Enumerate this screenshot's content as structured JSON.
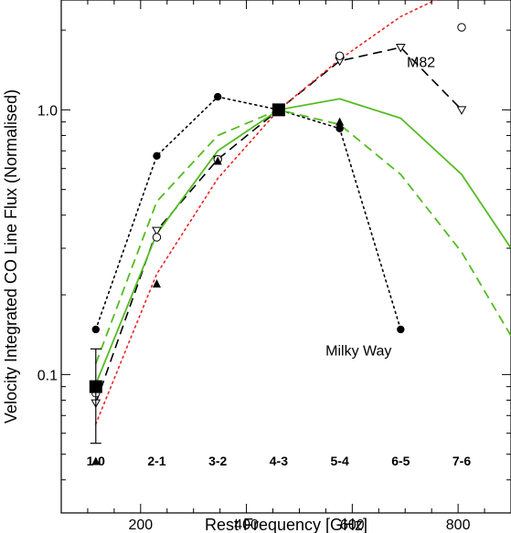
{
  "chart_data": {
    "type": "line",
    "xlabel": "Rest Frequency [GHz]",
    "ylabel": "Velocity Integrated CO Line Flux (Normalised)",
    "xlim": [
      50,
      900
    ],
    "ylim": [
      0.03,
      2.6
    ],
    "yscale": "log",
    "grid": false,
    "x_ticks": [
      200,
      400,
      600,
      800
    ],
    "y_ticks": [
      0.1,
      1.0
    ],
    "y_tick_labels": [
      "0.1",
      "1.0"
    ],
    "transitions": [
      {
        "label": "1-0",
        "freq": 115.3
      },
      {
        "label": "2-1",
        "freq": 230.5
      },
      {
        "label": "3-2",
        "freq": 345.8
      },
      {
        "label": "4-3",
        "freq": 461.0
      },
      {
        "label": "5-4",
        "freq": 576.3
      },
      {
        "label": "6-5",
        "freq": 691.5
      },
      {
        "label": "7-6",
        "freq": 806.7
      }
    ],
    "annotations": [
      {
        "text": "M82",
        "x": 730,
        "y": 1.45
      },
      {
        "text": "Milky Way",
        "x": 612,
        "y": 0.118
      }
    ],
    "series": [
      {
        "style": "black-dotted-filled-circle",
        "color": "#000000",
        "dash": "dotted",
        "x": [
          115.3,
          230.5,
          345.8,
          461.0,
          576.3,
          691.5
        ],
        "y": [
          0.148,
          0.67,
          1.12,
          1.0,
          0.85,
          0.148
        ]
      },
      {
        "style": "black-dashed-open-triangle",
        "color": "#000000",
        "dash": "dashed",
        "x": [
          115.3,
          230.5,
          345.8,
          461.0,
          576.3,
          691.5,
          806.7
        ],
        "y": [
          0.078,
          0.35,
          0.65,
          1.0,
          1.53,
          1.72,
          1.0
        ]
      },
      {
        "style": "open-circle",
        "color": "#000000",
        "dash": "none",
        "x": [
          115.3,
          230.5,
          345.8,
          461.0,
          576.3,
          806.7
        ],
        "y": [
          0.085,
          0.33,
          0.65,
          1.0,
          1.6,
          2.05
        ]
      },
      {
        "style": "filled-triangle",
        "color": "#000000",
        "dash": "none",
        "x": [
          115.3,
          230.5,
          345.8,
          461.0,
          576.3
        ],
        "y": [
          0.047,
          0.22,
          0.64,
          1.0,
          0.9
        ]
      },
      {
        "style": "green-solid",
        "color": "#55bb22",
        "dash": "solid",
        "x": [
          115.3,
          230.5,
          345.8,
          461.0,
          576.3,
          691.5,
          806.7,
          900
        ],
        "y": [
          0.092,
          0.34,
          0.7,
          1.0,
          1.1,
          0.93,
          0.57,
          0.3
        ]
      },
      {
        "style": "green-dashed",
        "color": "#55bb22",
        "dash": "dashed",
        "x": [
          115.3,
          230.5,
          345.8,
          461.0,
          576.3,
          691.5,
          806.7,
          900
        ],
        "y": [
          0.11,
          0.45,
          0.8,
          1.0,
          0.88,
          0.57,
          0.29,
          0.14
        ]
      },
      {
        "style": "red-dotted",
        "color": "#ee2222",
        "dash": "dotted",
        "x": [
          115.3,
          230.5,
          345.8,
          461.0,
          576.3,
          691.5,
          806.7
        ],
        "y": [
          0.065,
          0.24,
          0.55,
          1.0,
          1.55,
          2.25,
          2.9
        ]
      }
    ],
    "reference_points": [
      {
        "x": 115.3,
        "y": 0.09,
        "err_low": 0.055,
        "err_high": 0.125
      },
      {
        "x": 461.0,
        "y": 1.0
      }
    ]
  }
}
